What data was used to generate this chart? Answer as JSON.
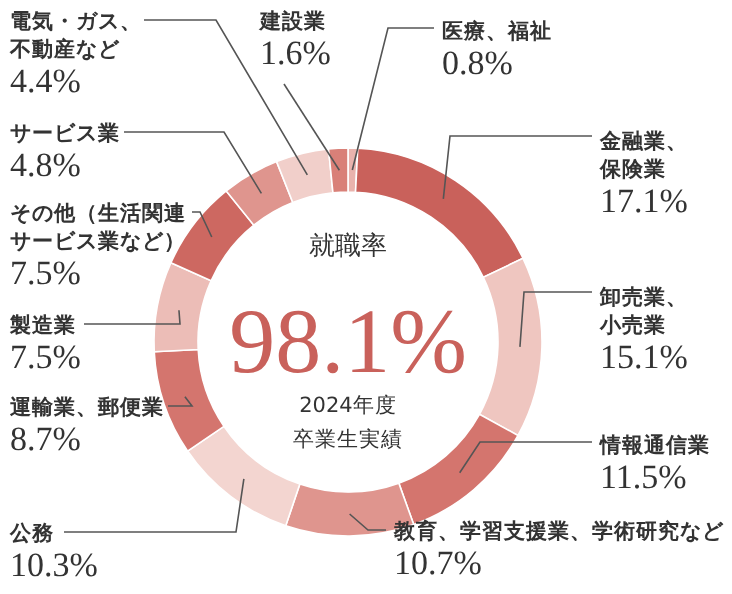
{
  "chart_data": {
    "type": "donut",
    "categories": [
      "医療、福祉",
      "金融業、保険業",
      "卸売業、小売業",
      "情報通信業",
      "教育、学習支援業、学術研究など",
      "公務",
      "運輸業、郵便業",
      "製造業",
      "その他（生活関連サービス業など）",
      "サービス業",
      "電気・ガス、不動産など",
      "建設業"
    ],
    "values": [
      0.8,
      17.1,
      15.1,
      11.5,
      10.7,
      10.3,
      8.7,
      7.5,
      7.5,
      4.8,
      4.4,
      1.6
    ],
    "colors": [
      "#e9b3ad",
      "#c9615b",
      "#efc6c0",
      "#d4756e",
      "#df958e",
      "#f3d5d0",
      "#d4756e",
      "#ecbdb7",
      "#cd6861",
      "#df958e",
      "#f1cfca",
      "#d98078"
    ],
    "value_labels": [
      "0.8%",
      "17.1%",
      "15.1%",
      "11.5%",
      "10.7%",
      "10.3%",
      "8.7%",
      "7.5%",
      "7.5%",
      "4.8%",
      "4.4%",
      "1.6%"
    ],
    "annotations": [
      "就職率",
      "98.1%",
      "2024年度",
      "卒業生実績"
    ]
  }
}
